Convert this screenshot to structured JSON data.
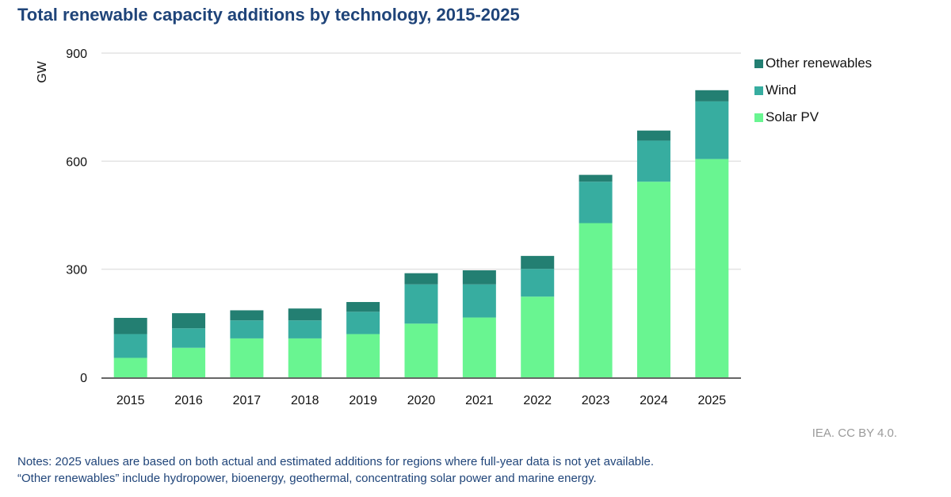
{
  "chart_data": {
    "type": "bar",
    "stacked": true,
    "title": "Total renewable capacity additions by technology, 2015-2025",
    "xlabel": "",
    "ylabel": "GW",
    "ylim": [
      0,
      900
    ],
    "yticks": [
      0,
      300,
      600,
      900
    ],
    "grid": true,
    "legend_position": "top-right",
    "categories": [
      "2015",
      "2016",
      "2017",
      "2018",
      "2019",
      "2020",
      "2021",
      "2022",
      "2023",
      "2024",
      "2025"
    ],
    "series": [
      {
        "name": "Solar PV",
        "color": "#69f591",
        "values": [
          54,
          82,
          108,
          108,
          120,
          149,
          166,
          224,
          428,
          543,
          606
        ]
      },
      {
        "name": "Wind",
        "color": "#37ada0",
        "values": [
          66,
          54,
          50,
          50,
          62,
          109,
          92,
          77,
          115,
          114,
          160
        ]
      },
      {
        "name": "Other renewables",
        "color": "#237f72",
        "values": [
          45,
          42,
          28,
          33,
          27,
          31,
          39,
          36,
          19,
          28,
          31
        ]
      }
    ],
    "legend_order": [
      "Other renewables",
      "Wind",
      "Solar PV"
    ]
  },
  "source": "IEA. CC BY 4.0.",
  "notes": [
    "Notes: 2025 values are based on both actual and estimated additions for regions where full-year data is not yet available.",
    "“Other renewables” include hydropower, bioenergy, geothermal, concentrating solar power and marine energy."
  ]
}
